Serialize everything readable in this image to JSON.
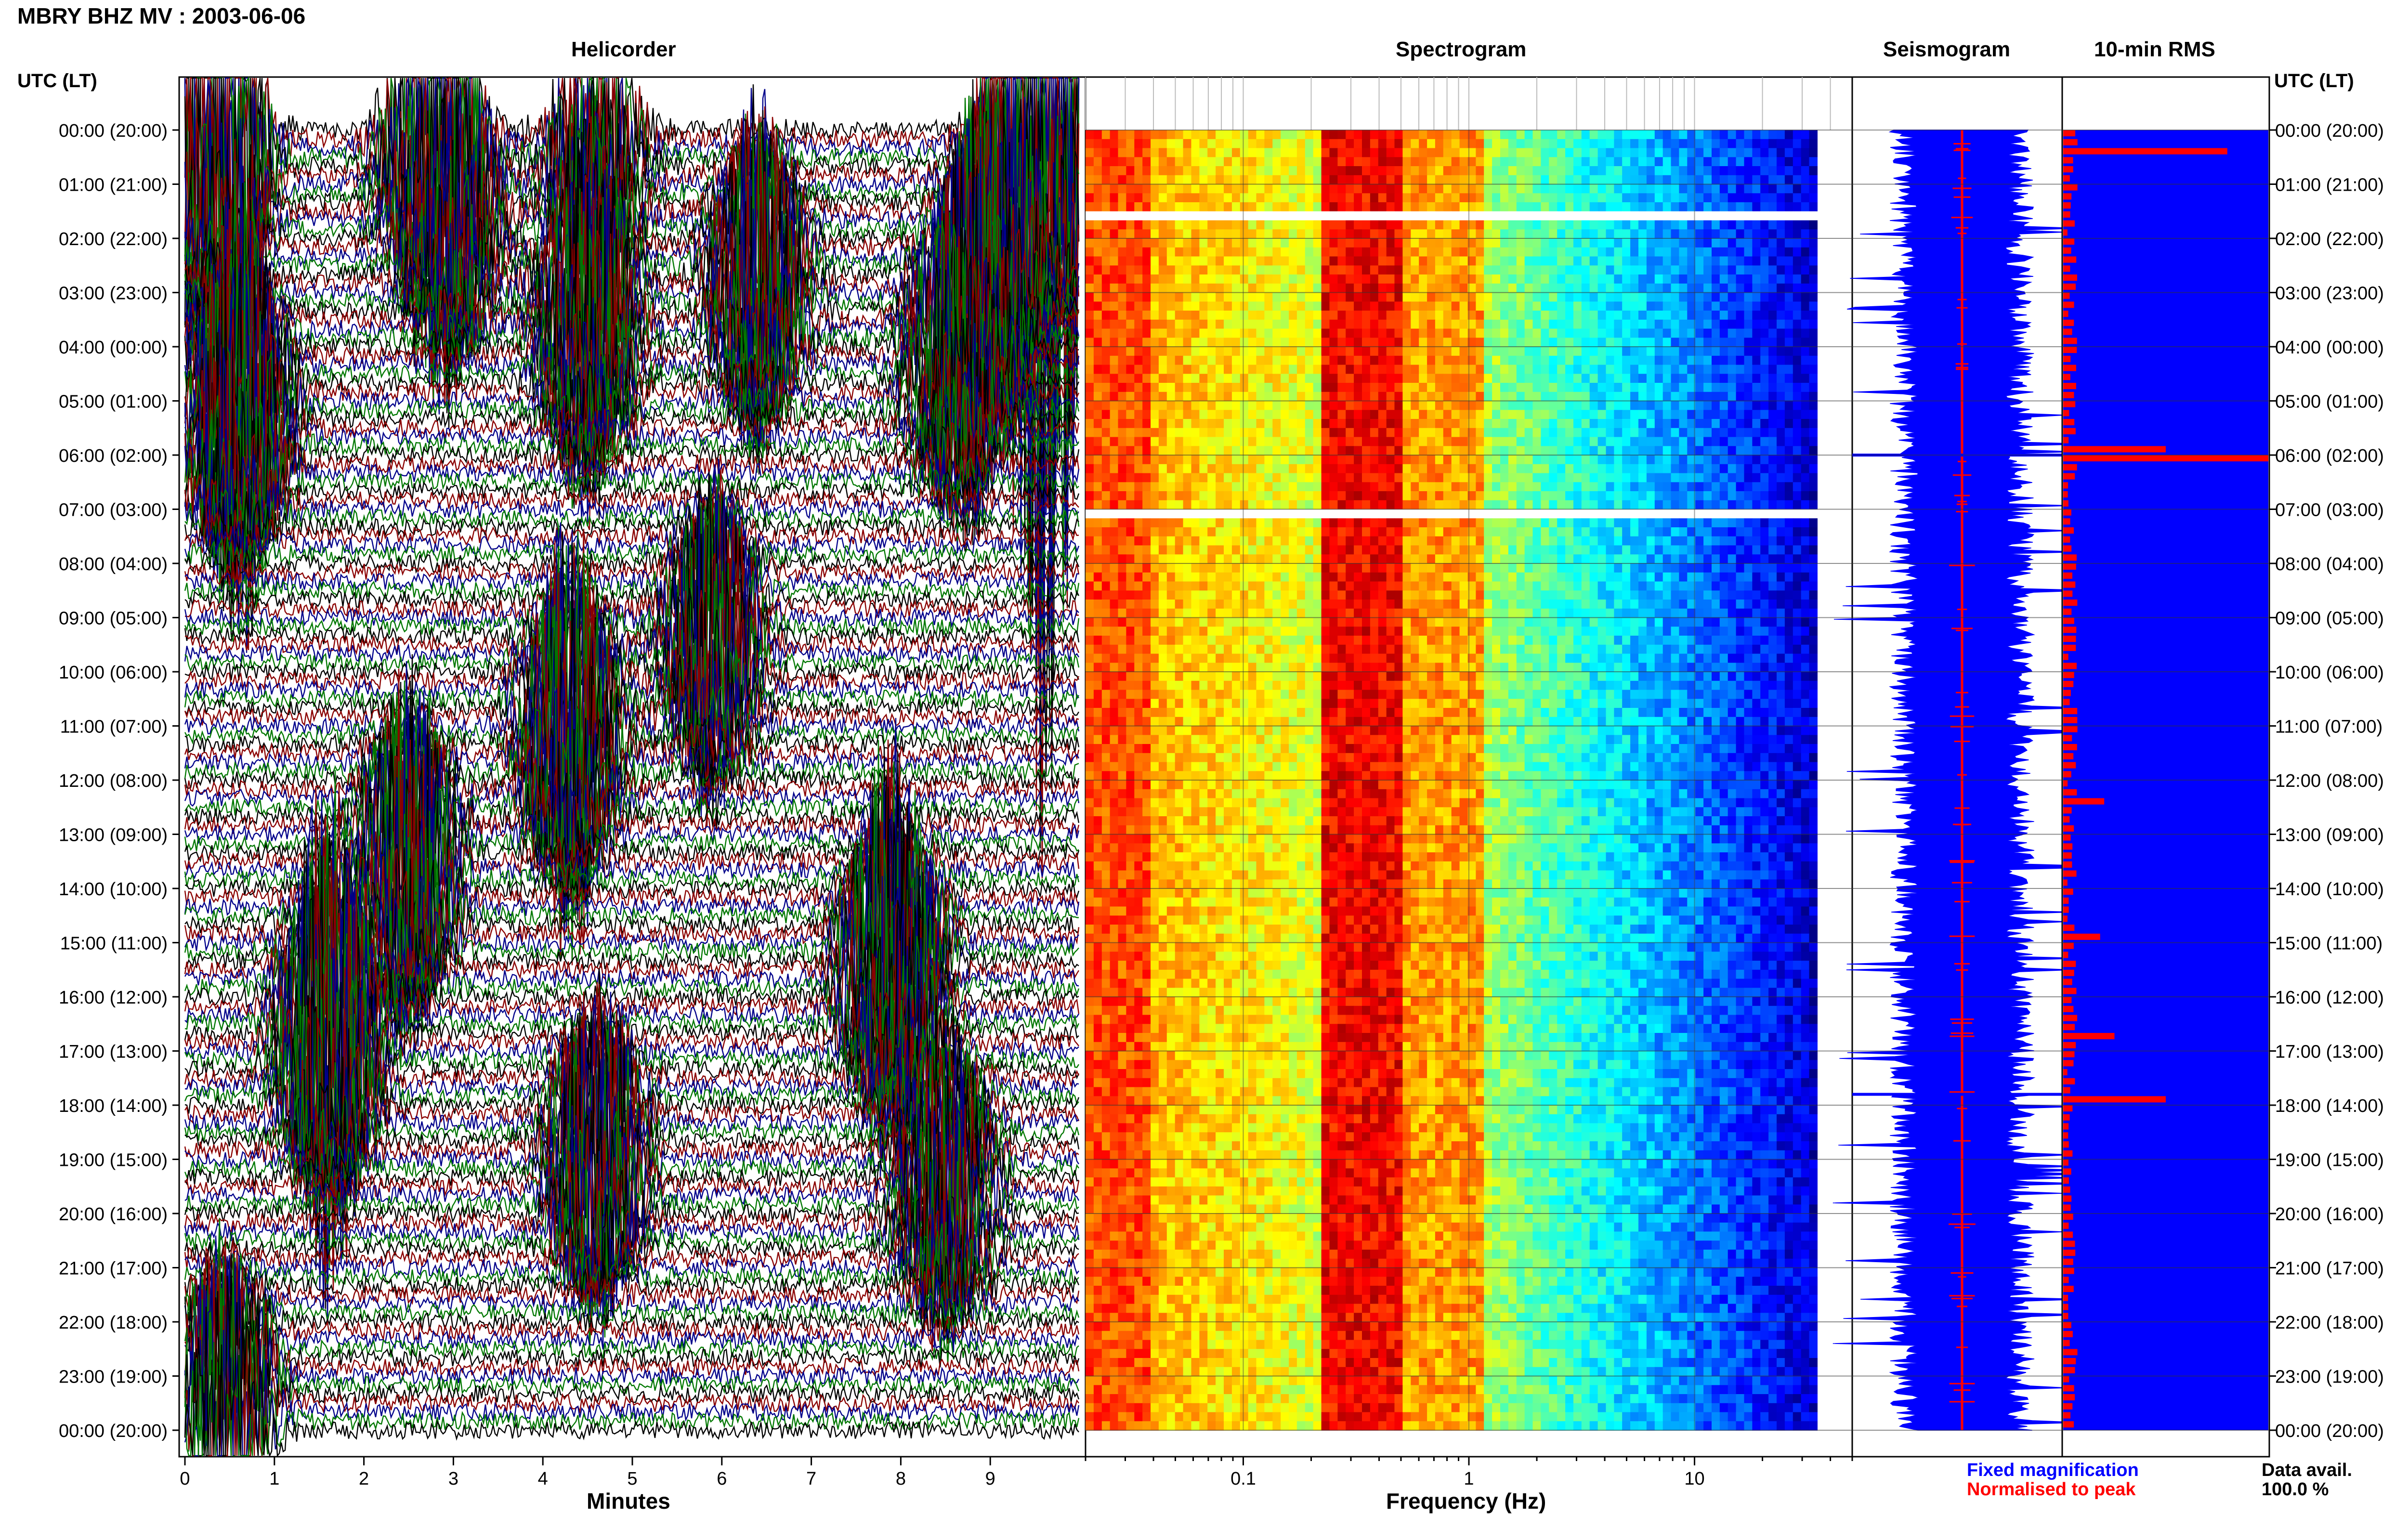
{
  "title": "MBRY BHZ MV : 2003-06-06",
  "panels": {
    "helicorder": "Helicorder",
    "spectrogram": "Spectrogram",
    "seismogram": "Seismogram",
    "rms": "10-min RMS"
  },
  "time_axis_header": "UTC (LT)",
  "time_labels": [
    "00:00 (20:00)",
    "01:00 (21:00)",
    "02:00 (22:00)",
    "03:00 (23:00)",
    "04:00 (00:00)",
    "05:00 (01:00)",
    "06:00 (02:00)",
    "07:00 (03:00)",
    "08:00 (04:00)",
    "09:00 (05:00)",
    "10:00 (06:00)",
    "11:00 (07:00)",
    "12:00 (08:00)",
    "13:00 (09:00)",
    "14:00 (10:00)",
    "15:00 (11:00)",
    "16:00 (12:00)",
    "17:00 (13:00)",
    "18:00 (14:00)",
    "19:00 (15:00)",
    "20:00 (16:00)",
    "21:00 (17:00)",
    "22:00 (18:00)",
    "23:00 (19:00)",
    "00:00 (20:00)"
  ],
  "legend": {
    "fixed": "Fixed magnification",
    "normalised": "Normalised to peak",
    "data_avail_label": "Data avail.",
    "data_avail_value": "100.0 %"
  },
  "colors": {
    "trace": [
      "#000000",
      "#8b0000",
      "#00008b",
      "#007800"
    ],
    "fixed": "#0000ff",
    "normalised": "#ff0000"
  },
  "chart_data": [
    {
      "type": "line",
      "name": "helicorder",
      "xlabel": "Minutes",
      "ylabel": "",
      "xlim": [
        0,
        10
      ],
      "x_ticks": [
        0,
        1,
        2,
        3,
        4,
        5,
        6,
        7,
        8,
        9
      ],
      "ylim_hours": [
        0,
        24
      ],
      "trace_lines_per_hour": 6,
      "events": [
        {
          "minute": 0.35,
          "hour": 0.1,
          "amp": 3.5
        },
        {
          "minute": 2.7,
          "hour": 0.3,
          "amp": 1.5
        },
        {
          "minute": 4.6,
          "hour": 0.3,
          "amp": 1.4
        },
        {
          "minute": 3.0,
          "hour": 1.6,
          "amp": 1.2
        },
        {
          "minute": 6.4,
          "hour": 2.8,
          "amp": 1.5
        },
        {
          "minute": 9.0,
          "hour": 2.6,
          "amp": 1.6
        },
        {
          "minute": 4.5,
          "hour": 3.6,
          "amp": 1.6
        },
        {
          "minute": 8.6,
          "hour": 4.3,
          "amp": 1.4
        },
        {
          "minute": 9.6,
          "hour": 0.2,
          "amp": 6.0
        },
        {
          "minute": 0.6,
          "hour": 5.2,
          "amp": 2.0
        },
        {
          "minute": 4.3,
          "hour": 11.2,
          "amp": 1.8
        },
        {
          "minute": 5.9,
          "hour": 9.5,
          "amp": 1.4
        },
        {
          "minute": 2.5,
          "hour": 13.5,
          "amp": 1.6
        },
        {
          "minute": 1.6,
          "hour": 16.8,
          "amp": 2.2
        },
        {
          "minute": 7.9,
          "hour": 15.5,
          "amp": 2.0
        },
        {
          "minute": 4.6,
          "hour": 19.0,
          "amp": 1.5
        },
        {
          "minute": 8.5,
          "hour": 19.5,
          "amp": 1.4
        },
        {
          "minute": 0.45,
          "hour": 23.5,
          "amp": 1.4
        }
      ]
    },
    {
      "type": "heatmap",
      "name": "spectrogram",
      "xlabel": "Frequency (Hz)",
      "ylabel": "",
      "x_scale": "log",
      "xlim": [
        0.02,
        50
      ],
      "x_tick_labels": [
        "0.1",
        "1",
        "10"
      ],
      "x_ticks": [
        0.1,
        1,
        10
      ],
      "ylim_hours": [
        0,
        24
      ],
      "colormap": "jet",
      "data_max_frequency": 35,
      "gap_hours": [
        1.6,
        7.1
      ]
    },
    {
      "type": "line",
      "name": "seismogram",
      "ylim_hours": [
        0,
        24
      ],
      "series": [
        {
          "key": "fixed",
          "color": "#0000ff"
        },
        {
          "key": "normalised",
          "color": "#ff0000"
        }
      ]
    },
    {
      "type": "bar",
      "name": "10-min RMS",
      "ylim_hours": [
        0,
        24
      ],
      "bins_per_hour": 6,
      "peak_bins": [
        {
          "hour": 0.4,
          "value": 0.8
        },
        {
          "hour": 6.0,
          "value": 1.0
        },
        {
          "hour": 17.8,
          "value": 0.5
        },
        {
          "hour": 12.4,
          "value": 0.2
        },
        {
          "hour": 16.7,
          "value": 0.25
        },
        {
          "hour": 14.9,
          "value": 0.18
        },
        {
          "hour": 5.9,
          "value": 0.5
        }
      ]
    }
  ]
}
